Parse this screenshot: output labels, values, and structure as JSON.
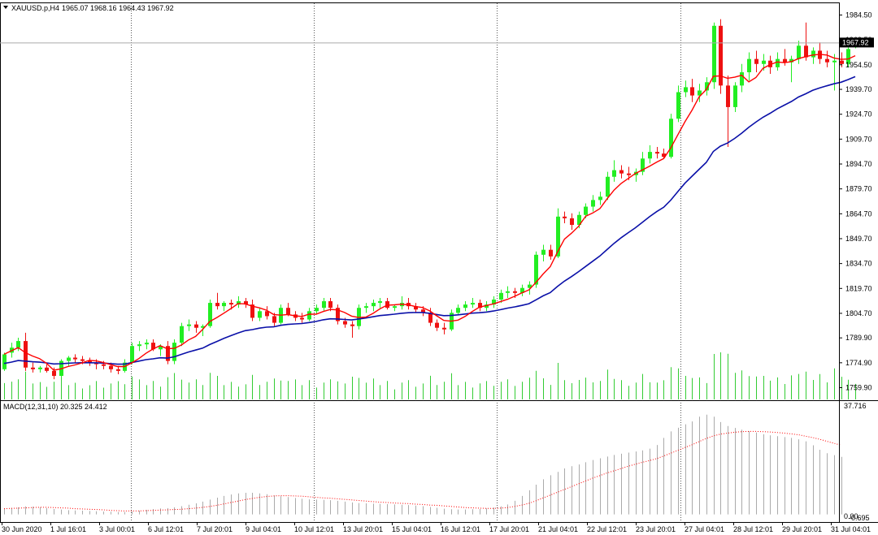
{
  "header": {
    "symbol_label": "XAUUSD.p,H4",
    "ohlc_label": "1965.07 1968.16 1964.43 1967.92"
  },
  "price_axis": {
    "ticks": [
      "1984.50",
      "1969.50",
      "1954.50",
      "1939.70",
      "1924.70",
      "1909.70",
      "1894.70",
      "1879.70",
      "1864.70",
      "1849.70",
      "1834.70",
      "1819.70",
      "1804.70",
      "1789.90",
      "1774.90",
      "1759.90"
    ],
    "current_price": "1967.92"
  },
  "macd": {
    "label": "MACD(12,31,10) 20.325 24.412",
    "axis_top": "37.716",
    "axis_bottom_a": "0.00",
    "axis_bottom_b": "-0.695"
  },
  "time_axis": {
    "labels": [
      "30 Jun 2020",
      "1 Jul 16:01",
      "3 Jul 00:01",
      "6 Jul 12:01",
      "7 Jul 20:01",
      "9 Jul 04:01",
      "10 Jul 12:01",
      "13 Jul 20:01",
      "15 Jul 04:01",
      "16 Jul 12:01",
      "17 Jul 20:01",
      "21 Jul 04:01",
      "22 Jul 12:01",
      "23 Jul 20:01",
      "27 Jul 04:01",
      "28 Jul 12:01",
      "29 Jul 20:01",
      "31 Jul 04:01"
    ]
  },
  "colors": {
    "bull": "#22ee22",
    "bear": "#ee1111",
    "fast_ma": "#ff0000",
    "slow_ma": "#0a10a8",
    "volume": "#33cc33",
    "macd_signal": "#ff0000",
    "macd_hist": "#aaaaaa"
  },
  "chart_data": [
    {
      "type": "candlestick",
      "title": "XAUUSD.p,H4",
      "ylim": [
        1754,
        1990
      ],
      "candles": [
        [
          1771,
          1781,
          1770,
          1780
        ],
        [
          1781,
          1787,
          1778,
          1784
        ],
        [
          1784,
          1790,
          1782,
          1788
        ],
        [
          1788,
          1793,
          1770,
          1772
        ],
        [
          1772,
          1775,
          1769,
          1771
        ],
        [
          1771,
          1773,
          1769,
          1772
        ],
        [
          1772,
          1774,
          1769,
          1770
        ],
        [
          1770,
          1772,
          1765,
          1767
        ],
        [
          1767,
          1777,
          1766,
          1776
        ],
        [
          1776,
          1779,
          1773,
          1778
        ],
        [
          1778,
          1780,
          1775,
          1777
        ],
        [
          1777,
          1779,
          1774,
          1776
        ],
        [
          1776,
          1778,
          1773,
          1775
        ],
        [
          1775,
          1777,
          1771,
          1774
        ],
        [
          1774,
          1776,
          1771,
          1773
        ],
        [
          1773,
          1775,
          1769,
          1771
        ],
        [
          1771,
          1773,
          1768,
          1770
        ],
        [
          1770,
          1777,
          1769,
          1775
        ],
        [
          1775,
          1787,
          1774,
          1785
        ],
        [
          1785,
          1788,
          1782,
          1786
        ],
        [
          1786,
          1789,
          1783,
          1787
        ],
        [
          1787,
          1789,
          1782,
          1783
        ],
        [
          1783,
          1786,
          1779,
          1785
        ],
        [
          1785,
          1788,
          1774,
          1776
        ],
        [
          1776,
          1789,
          1774,
          1787
        ],
        [
          1787,
          1799,
          1785,
          1797
        ],
        [
          1797,
          1801,
          1794,
          1798
        ],
        [
          1798,
          1800,
          1793,
          1796
        ],
        [
          1796,
          1798,
          1791,
          1797
        ],
        [
          1797,
          1813,
          1796,
          1811
        ],
        [
          1811,
          1817,
          1807,
          1809
        ],
        [
          1809,
          1812,
          1806,
          1811
        ],
        [
          1811,
          1813,
          1807,
          1810
        ],
        [
          1810,
          1815,
          1808,
          1812
        ],
        [
          1812,
          1814,
          1808,
          1810
        ],
        [
          1810,
          1813,
          1800,
          1802
        ],
        [
          1802,
          1808,
          1800,
          1806
        ],
        [
          1806,
          1809,
          1801,
          1803
        ],
        [
          1803,
          1805,
          1797,
          1799
        ],
        [
          1799,
          1810,
          1798,
          1808
        ],
        [
          1808,
          1811,
          1803,
          1804
        ],
        [
          1804,
          1806,
          1800,
          1802
        ],
        [
          1802,
          1805,
          1799,
          1801
        ],
        [
          1801,
          1808,
          1800,
          1806
        ],
        [
          1806,
          1810,
          1804,
          1808
        ],
        [
          1808,
          1814,
          1806,
          1812
        ],
        [
          1812,
          1814,
          1806,
          1808
        ],
        [
          1808,
          1810,
          1798,
          1800
        ],
        [
          1800,
          1802,
          1796,
          1798
        ],
        [
          1798,
          1800,
          1790,
          1797
        ],
        [
          1797,
          1810,
          1795,
          1808
        ],
        [
          1808,
          1811,
          1805,
          1809
        ],
        [
          1809,
          1813,
          1806,
          1811
        ],
        [
          1811,
          1814,
          1808,
          1812
        ],
        [
          1812,
          1814,
          1807,
          1808
        ],
        [
          1808,
          1810,
          1806,
          1809
        ],
        [
          1809,
          1815,
          1807,
          1811
        ],
        [
          1811,
          1814,
          1807,
          1809
        ],
        [
          1809,
          1811,
          1805,
          1807
        ],
        [
          1807,
          1809,
          1803,
          1805
        ],
        [
          1805,
          1808,
          1797,
          1799
        ],
        [
          1799,
          1801,
          1794,
          1796
        ],
        [
          1796,
          1799,
          1792,
          1795
        ],
        [
          1795,
          1807,
          1794,
          1805
        ],
        [
          1805,
          1810,
          1804,
          1808
        ],
        [
          1808,
          1812,
          1806,
          1810
        ],
        [
          1810,
          1814,
          1808,
          1811
        ],
        [
          1811,
          1813,
          1806,
          1808
        ],
        [
          1808,
          1812,
          1806,
          1810
        ],
        [
          1810,
          1815,
          1808,
          1813
        ],
        [
          1813,
          1819,
          1811,
          1817
        ],
        [
          1817,
          1821,
          1814,
          1818
        ],
        [
          1818,
          1820,
          1814,
          1817
        ],
        [
          1817,
          1822,
          1815,
          1820
        ],
        [
          1820,
          1824,
          1816,
          1822
        ],
        [
          1822,
          1842,
          1820,
          1840
        ],
        [
          1840,
          1846,
          1836,
          1843
        ],
        [
          1843,
          1846,
          1837,
          1839
        ],
        [
          1839,
          1868,
          1838,
          1863
        ],
        [
          1863,
          1866,
          1859,
          1862
        ],
        [
          1862,
          1865,
          1855,
          1858
        ],
        [
          1858,
          1866,
          1856,
          1864
        ],
        [
          1864,
          1871,
          1862,
          1869
        ],
        [
          1869,
          1876,
          1866,
          1873
        ],
        [
          1873,
          1878,
          1870,
          1875
        ],
        [
          1875,
          1890,
          1873,
          1887
        ],
        [
          1887,
          1897,
          1884,
          1891
        ],
        [
          1891,
          1894,
          1886,
          1889
        ],
        [
          1889,
          1893,
          1885,
          1888
        ],
        [
          1888,
          1892,
          1884,
          1890
        ],
        [
          1890,
          1902,
          1888,
          1898
        ],
        [
          1898,
          1906,
          1895,
          1902
        ],
        [
          1902,
          1905,
          1898,
          1901
        ],
        [
          1901,
          1904,
          1898,
          1899
        ],
        [
          1899,
          1925,
          1898,
          1922
        ],
        [
          1922,
          1942,
          1920,
          1938
        ],
        [
          1938,
          1945,
          1935,
          1941
        ],
        [
          1941,
          1946,
          1932,
          1936
        ],
        [
          1936,
          1943,
          1932,
          1939
        ],
        [
          1939,
          1947,
          1936,
          1944
        ],
        [
          1944,
          1980,
          1940,
          1978
        ],
        [
          1978,
          1982,
          1937,
          1942
        ],
        [
          1942,
          1948,
          1905,
          1929
        ],
        [
          1929,
          1944,
          1926,
          1942
        ],
        [
          1942,
          1955,
          1938,
          1950
        ],
        [
          1950,
          1962,
          1945,
          1958
        ],
        [
          1958,
          1963,
          1950,
          1955
        ],
        [
          1955,
          1961,
          1951,
          1957
        ],
        [
          1957,
          1960,
          1949,
          1953
        ],
        [
          1953,
          1962,
          1951,
          1958
        ],
        [
          1958,
          1964,
          1954,
          1956
        ],
        [
          1956,
          1960,
          1944,
          1958
        ],
        [
          1958,
          1969,
          1955,
          1966
        ],
        [
          1966,
          1980,
          1957,
          1959
        ],
        [
          1959,
          1965,
          1955,
          1963
        ],
        [
          1963,
          1968,
          1955,
          1958
        ],
        [
          1958,
          1963,
          1953,
          1956
        ],
        [
          1956,
          1961,
          1939,
          1957
        ],
        [
          1957,
          1962,
          1953,
          1955
        ],
        [
          1955,
          1965,
          1953,
          1964
        ],
        [
          1965.07,
          1968.16,
          1964.43,
          1967.92
        ]
      ]
    },
    {
      "type": "bar",
      "title": "MACD(12,31,10) 20.325 24.412",
      "ylim": [
        -0.695,
        37.716
      ],
      "main": [
        2.1,
        2.3,
        2.5,
        2.8,
        2.7,
        2.5,
        2.2,
        1.9,
        1.7,
        1.5,
        1.4,
        1.3,
        1.2,
        1.1,
        1.0,
        0.9,
        0.8,
        0.8,
        1.0,
        1.3,
        1.6,
        1.9,
        2.1,
        2.2,
        2.5,
        2.9,
        3.4,
        3.9,
        4.5,
        5.2,
        5.9,
        6.5,
        7.0,
        7.4,
        7.6,
        7.6,
        7.4,
        7.1,
        6.7,
        6.4,
        6.1,
        5.8,
        5.5,
        5.3,
        5.2,
        5.1,
        5.0,
        4.8,
        4.5,
        4.2,
        4.0,
        3.9,
        3.8,
        3.7,
        3.6,
        3.5,
        3.4,
        3.3,
        3.1,
        2.9,
        2.6,
        2.3,
        2.0,
        1.8,
        1.7,
        1.7,
        1.8,
        1.9,
        2.1,
        2.4,
        2.8,
        3.5,
        4.8,
        6.5,
        8.5,
        10.5,
        12.4,
        13.8,
        15.0,
        16.2,
        17.0,
        17.6,
        18.4,
        19.2,
        19.8,
        20.4,
        21.0,
        21.4,
        21.8,
        22.2,
        22.6,
        23.2,
        24.5,
        27.0,
        29.3,
        30.6,
        31.8,
        32.8,
        34.5,
        35.2,
        34.5,
        32.6,
        31.2,
        30.5,
        29.9,
        29.4,
        28.9,
        28.3,
        27.9,
        27.6,
        27.3,
        27.0,
        26.5,
        25.8,
        24.4,
        22.8,
        21.6,
        20.9,
        20.3
      ],
      "signal": [
        2.0,
        2.1,
        2.2,
        2.3,
        2.4,
        2.5,
        2.5,
        2.4,
        2.3,
        2.2,
        2.0,
        1.9,
        1.8,
        1.7,
        1.6,
        1.4,
        1.3,
        1.2,
        1.2,
        1.2,
        1.3,
        1.4,
        1.5,
        1.6,
        1.7,
        1.8,
        2.0,
        2.2,
        2.5,
        2.8,
        3.2,
        3.7,
        4.2,
        4.7,
        5.2,
        5.6,
        6.0,
        6.3,
        6.5,
        6.6,
        6.6,
        6.5,
        6.4,
        6.2,
        6.0,
        5.8,
        5.7,
        5.5,
        5.3,
        5.1,
        4.9,
        4.7,
        4.5,
        4.3,
        4.2,
        4.0,
        3.9,
        3.8,
        3.6,
        3.5,
        3.3,
        3.2,
        3.0,
        2.8,
        2.6,
        2.4,
        2.3,
        2.2,
        2.1,
        2.1,
        2.2,
        2.4,
        2.8,
        3.3,
        3.9,
        4.8,
        5.8,
        6.8,
        7.8,
        8.8,
        9.8,
        10.8,
        11.8,
        12.8,
        13.7,
        14.6,
        15.4,
        16.2,
        17.0,
        17.7,
        18.4,
        19.0,
        19.7,
        20.6,
        21.6,
        22.6,
        23.6,
        24.6,
        25.7,
        26.8,
        27.7,
        28.3,
        28.7,
        29.0,
        29.2,
        29.3,
        29.3,
        29.2,
        29.1,
        28.9,
        28.7,
        28.4,
        28.1,
        27.6,
        27.1,
        26.5,
        25.8,
        25.1,
        24.412
      ]
    }
  ]
}
